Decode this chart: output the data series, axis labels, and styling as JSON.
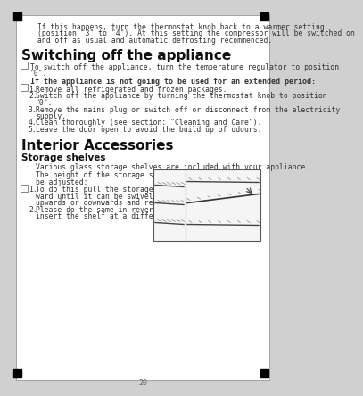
{
  "bg_color": "#d0d0d0",
  "page_bg": "#ffffff",
  "border_color": "#999999",
  "intro_text": "If this happens, turn the thermostat knob back to a warmer setting\n(position \"3\" to \"4\"). At this setting the compressor will be switched on\nand off as usual and automatic defrosting recommenced.",
  "title1": "Switching off the appliance",
  "switch_note_line1": "To switch off the appliance, turn the temperature regulator to position",
  "switch_note_line2": "\"0\".",
  "switch_bold": "If the appliance is not going to be used for an extended period:",
  "switch_items": [
    "Remove all refrigerated and frozen packages.",
    "Switch off the appliance by turning the thermostat knob to position\n    \"0\".",
    "Remove the mains plug or switch off or disconnect from the electricity\n    supply.",
    "Clean thoroughly (see section: \"Cleaning and Care\").",
    "Leave the door open to avoid the build up of odours."
  ],
  "title2": "Interior Accessories",
  "subtitle1": "Storage shelves",
  "storage_intro": "Various glass storage shelves are included with your appliance.",
  "storage_note_line1": "The height of the storage shelves can",
  "storage_note_line2": "be adjusted:",
  "storage_item1_lines": [
    "To do this pull the storage shelf for-",
    "ward until it can be swivelled",
    "upwards or downwards and removed."
  ],
  "storage_item2_lines": [
    "Please do the same in reverse to",
    "insert the shelf at a different height."
  ],
  "font_size_body": 5.8,
  "font_size_title1": 11,
  "font_size_title2": 11,
  "font_size_subtitle": 7.5,
  "font_size_bold": 6.0
}
